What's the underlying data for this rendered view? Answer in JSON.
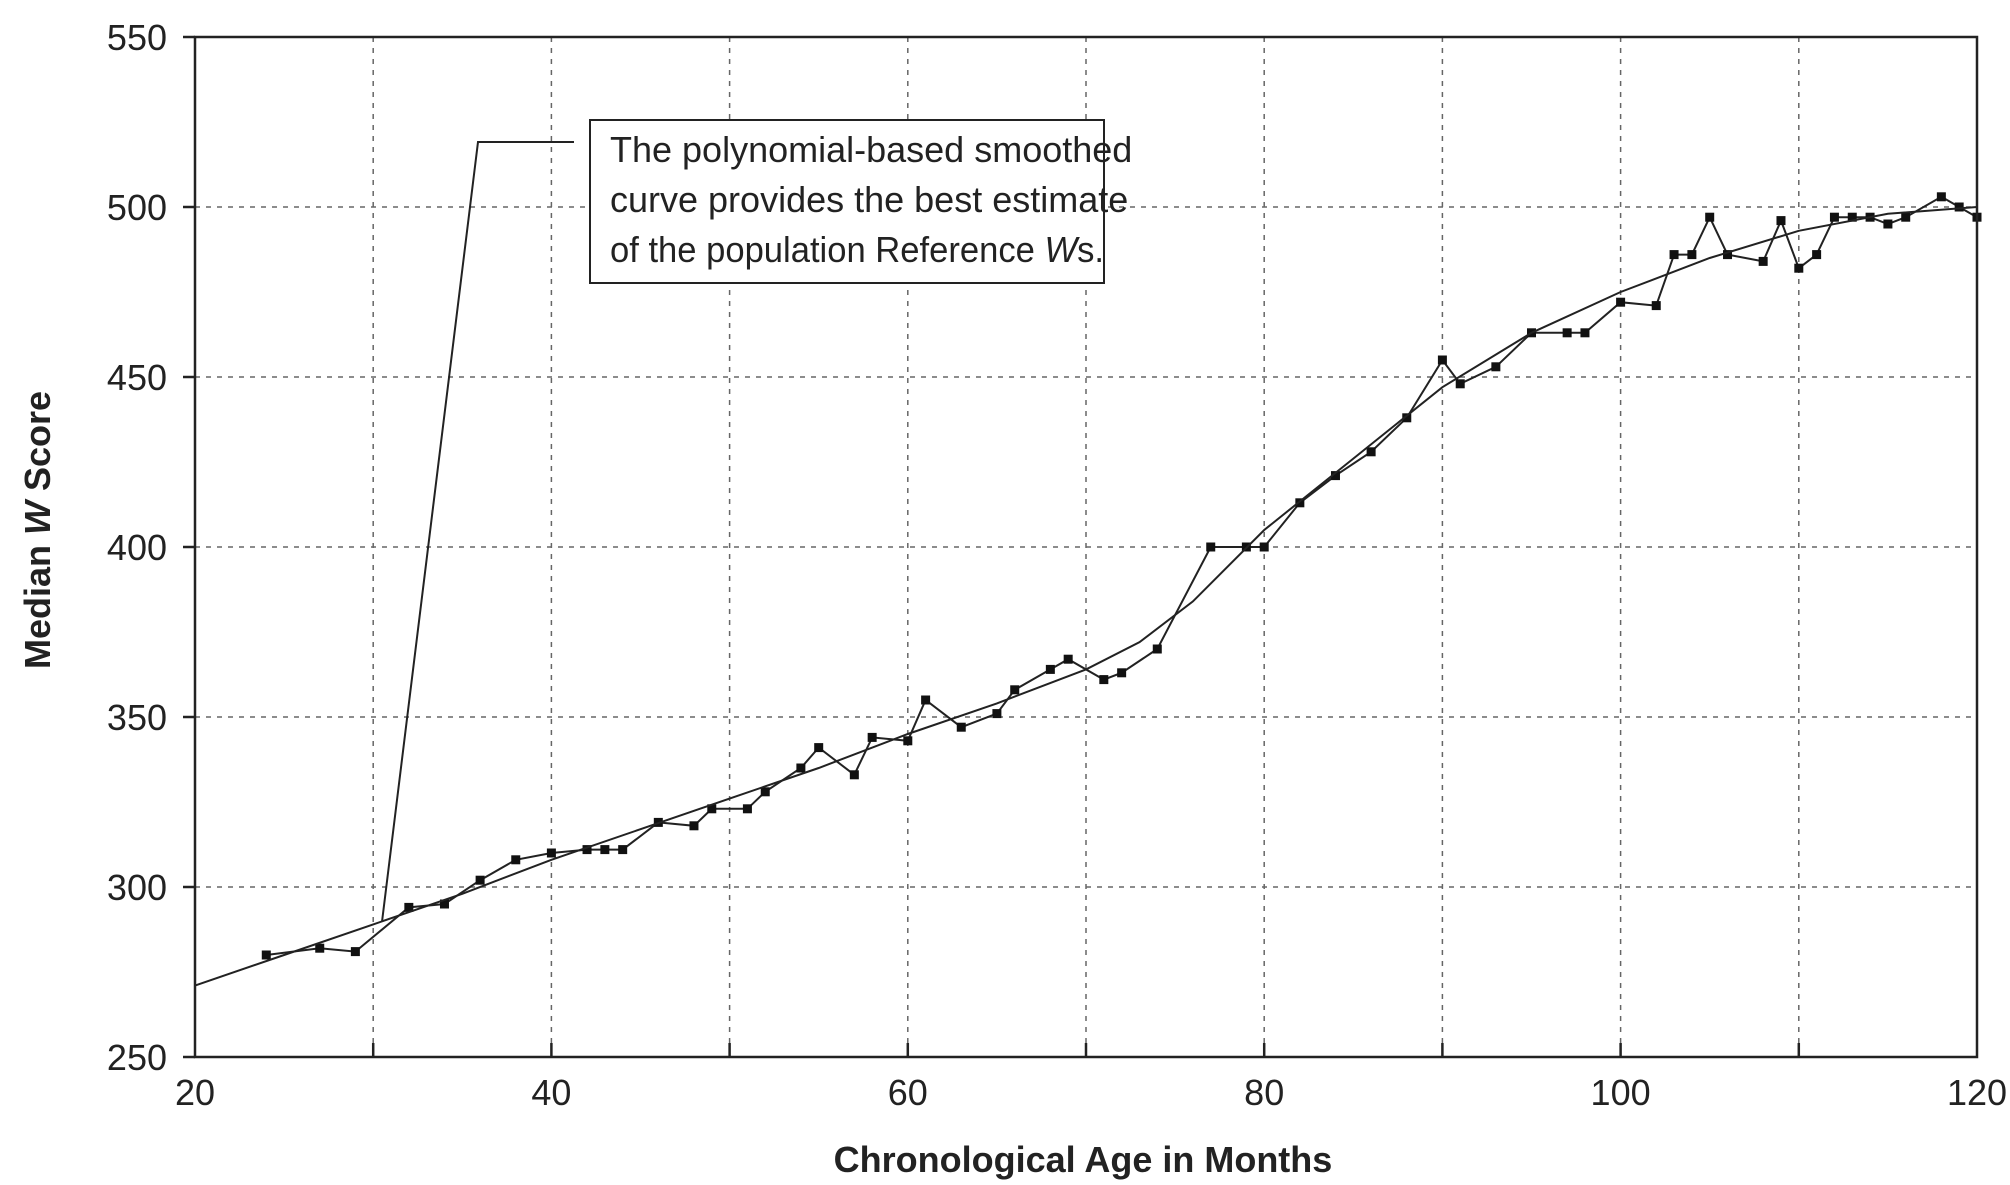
{
  "chart_data": {
    "type": "line",
    "title": "",
    "xlabel": "Chronological Age in Months",
    "ylabel_parts": [
      "Median ",
      "W",
      " Score"
    ],
    "xlim": [
      20,
      120
    ],
    "ylim": [
      250,
      550
    ],
    "x_ticks": [
      20,
      40,
      60,
      80,
      100,
      120
    ],
    "y_ticks": [
      250,
      300,
      350,
      400,
      450,
      500,
      550
    ],
    "grid": true,
    "annotation": {
      "lines": [
        "The polynomial-based smoothed",
        "curve provides the best estimate",
        "of the population Reference "
      ],
      "italic": "W",
      "tail": "s.",
      "points_to": {
        "x": 30.5,
        "y": 290
      }
    },
    "series": [
      {
        "style": "raw",
        "points": [
          {
            "x": 24,
            "y": 280
          },
          {
            "x": 27,
            "y": 282
          },
          {
            "x": 29,
            "y": 281
          },
          {
            "x": 32,
            "y": 294
          },
          {
            "x": 34,
            "y": 295
          },
          {
            "x": 36,
            "y": 302
          },
          {
            "x": 38,
            "y": 308
          },
          {
            "x": 40,
            "y": 310
          },
          {
            "x": 42,
            "y": 311
          },
          {
            "x": 43,
            "y": 311
          },
          {
            "x": 44,
            "y": 311
          },
          {
            "x": 46,
            "y": 319
          },
          {
            "x": 48,
            "y": 318
          },
          {
            "x": 49,
            "y": 323
          },
          {
            "x": 51,
            "y": 323
          },
          {
            "x": 52,
            "y": 328
          },
          {
            "x": 54,
            "y": 335
          },
          {
            "x": 55,
            "y": 341
          },
          {
            "x": 57,
            "y": 333
          },
          {
            "x": 58,
            "y": 344
          },
          {
            "x": 60,
            "y": 343
          },
          {
            "x": 61,
            "y": 355
          },
          {
            "x": 63,
            "y": 347
          },
          {
            "x": 65,
            "y": 351
          },
          {
            "x": 66,
            "y": 358
          },
          {
            "x": 68,
            "y": 364
          },
          {
            "x": 69,
            "y": 367
          },
          {
            "x": 71,
            "y": 361
          },
          {
            "x": 72,
            "y": 363
          },
          {
            "x": 74,
            "y": 370
          },
          {
            "x": 77,
            "y": 400
          },
          {
            "x": 79,
            "y": 400
          },
          {
            "x": 80,
            "y": 400
          },
          {
            "x": 82,
            "y": 413
          },
          {
            "x": 84,
            "y": 421
          },
          {
            "x": 86,
            "y": 428
          },
          {
            "x": 88,
            "y": 438
          },
          {
            "x": 90,
            "y": 455
          },
          {
            "x": 91,
            "y": 448
          },
          {
            "x": 93,
            "y": 453
          },
          {
            "x": 95,
            "y": 463
          },
          {
            "x": 97,
            "y": 463
          },
          {
            "x": 98,
            "y": 463
          },
          {
            "x": 100,
            "y": 472
          },
          {
            "x": 102,
            "y": 471
          },
          {
            "x": 103,
            "y": 486
          },
          {
            "x": 104,
            "y": 486
          },
          {
            "x": 105,
            "y": 497
          },
          {
            "x": 106,
            "y": 486
          },
          {
            "x": 108,
            "y": 484
          },
          {
            "x": 109,
            "y": 496
          },
          {
            "x": 110,
            "y": 482
          },
          {
            "x": 111,
            "y": 486
          },
          {
            "x": 112,
            "y": 497
          },
          {
            "x": 113,
            "y": 497
          },
          {
            "x": 114,
            "y": 497
          },
          {
            "x": 115,
            "y": 495
          },
          {
            "x": 116,
            "y": 497
          },
          {
            "x": 118,
            "y": 503
          },
          {
            "x": 119,
            "y": 500
          },
          {
            "x": 120,
            "y": 497
          }
        ]
      },
      {
        "style": "smoothed",
        "points": [
          {
            "x": 20,
            "y": 271
          },
          {
            "x": 25,
            "y": 280
          },
          {
            "x": 30,
            "y": 289
          },
          {
            "x": 35,
            "y": 298
          },
          {
            "x": 40,
            "y": 308
          },
          {
            "x": 45,
            "y": 317
          },
          {
            "x": 50,
            "y": 326
          },
          {
            "x": 55,
            "y": 335
          },
          {
            "x": 60,
            "y": 345
          },
          {
            "x": 65,
            "y": 354
          },
          {
            "x": 70,
            "y": 364
          },
          {
            "x": 73,
            "y": 372
          },
          {
            "x": 76,
            "y": 384
          },
          {
            "x": 80,
            "y": 405
          },
          {
            "x": 85,
            "y": 426
          },
          {
            "x": 90,
            "y": 447
          },
          {
            "x": 95,
            "y": 463
          },
          {
            "x": 100,
            "y": 475
          },
          {
            "x": 105,
            "y": 485
          },
          {
            "x": 110,
            "y": 493
          },
          {
            "x": 115,
            "y": 498
          },
          {
            "x": 120,
            "y": 500
          }
        ]
      }
    ]
  }
}
